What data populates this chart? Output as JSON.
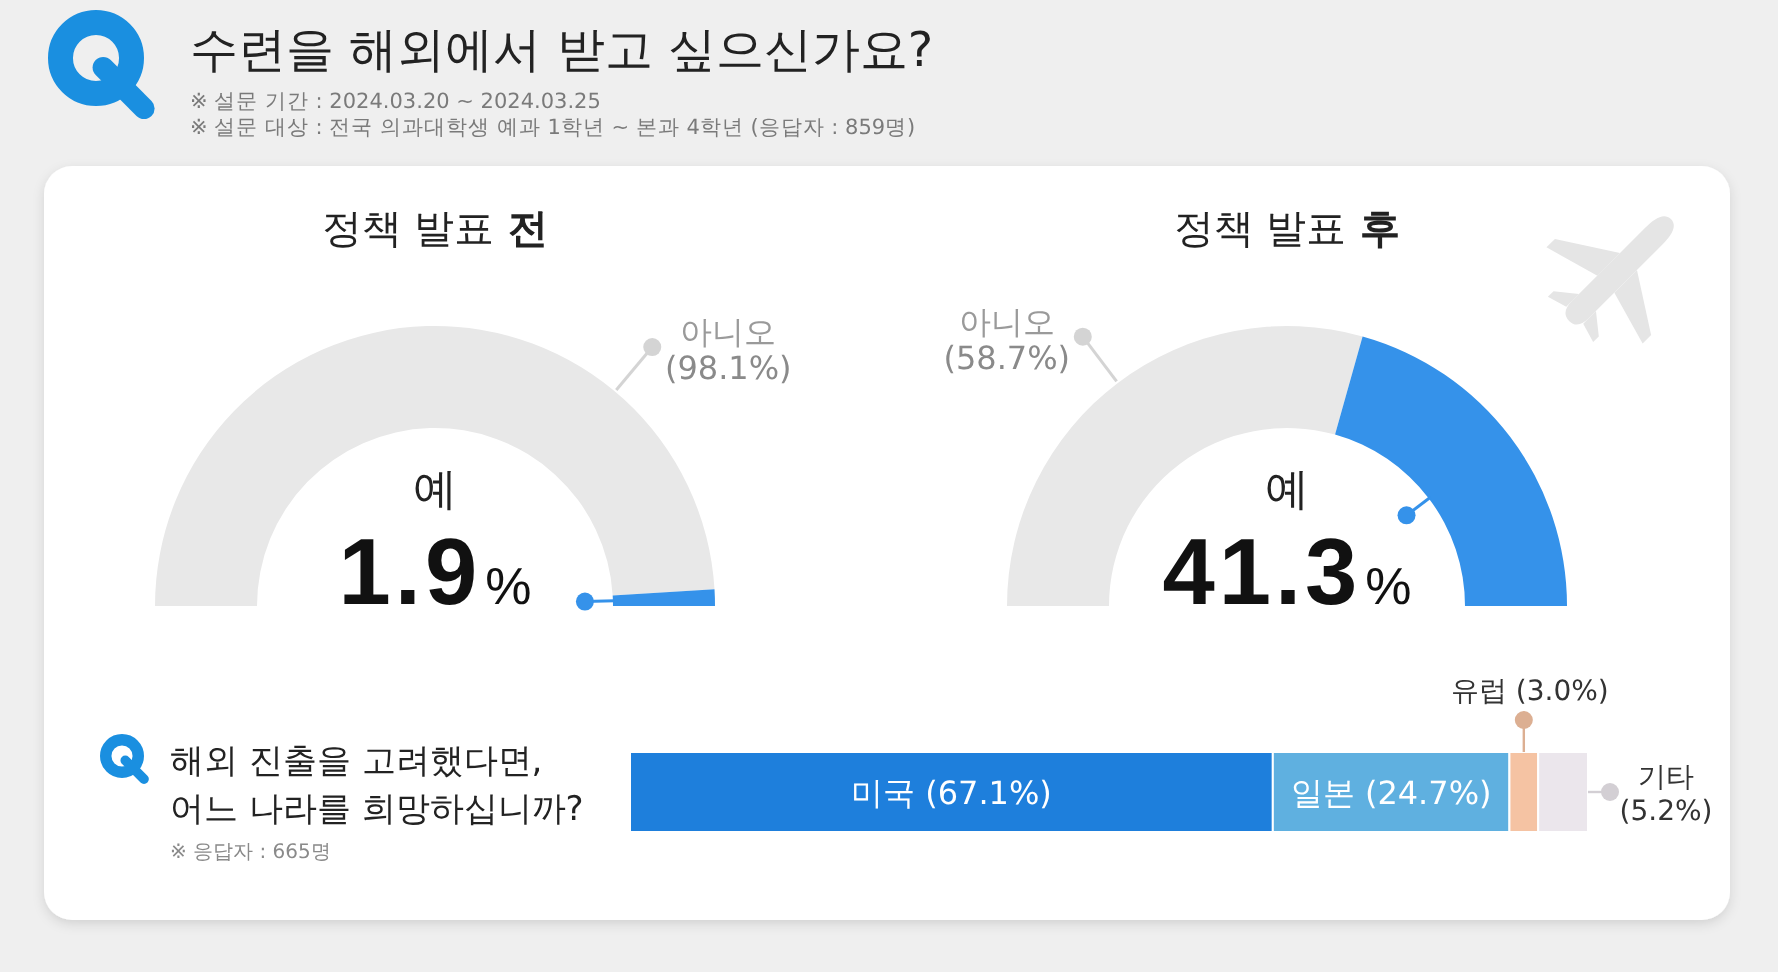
{
  "chart_data": [
    {
      "type": "other",
      "title": "수련을 해외에서 받고 싶으신가요?",
      "annotations": [
        "※ 설문 기간 : 2024.03.20 ~ 2024.03.25",
        "※ 설문 대상 : 전국 의과대학생 예과 1학년 ~ 본과 4학년 (응답자 : 859명)"
      ]
    },
    {
      "type": "donut",
      "title": "정책 발표 전",
      "categories": [
        "아니오",
        "예"
      ],
      "values": [
        98.1,
        1.9
      ],
      "colors": [
        "#e8e8e8",
        "#3592ea"
      ],
      "value_labels": [
        "(98.1%)",
        "1.9%"
      ]
    },
    {
      "type": "donut",
      "title": "정책 발표 후",
      "categories": [
        "아니오",
        "예"
      ],
      "values": [
        58.7,
        41.3
      ],
      "colors": [
        "#e8e8e8",
        "#3592ea"
      ],
      "value_labels": [
        "(58.7%)",
        "41.3%"
      ]
    },
    {
      "type": "bar",
      "orientation": "horizontal",
      "stacked": true,
      "title": "해외 진출을 고려했다면, 어느 나라를 희망하십니까?",
      "annotations": [
        "※ 응답자 : 665명"
      ],
      "categories": [
        null
      ],
      "series": [
        {
          "name": "미국",
          "color": "#1e7fdc",
          "values": [
            67.1
          ],
          "value_labels": [
            "(67.1%)"
          ]
        },
        {
          "name": "일본",
          "color": "#5fb0e0",
          "values": [
            24.7
          ],
          "value_labels": [
            "(24.7%)"
          ]
        },
        {
          "name": "유럽",
          "color": "#f5c3a3",
          "values": [
            3.0
          ],
          "value_labels": [
            "(3.0%)"
          ]
        },
        {
          "name": "기타",
          "color": "#ebe6ec",
          "values": [
            5.2
          ],
          "value_labels": [
            "(5.2%)"
          ]
        }
      ]
    }
  ]
}
